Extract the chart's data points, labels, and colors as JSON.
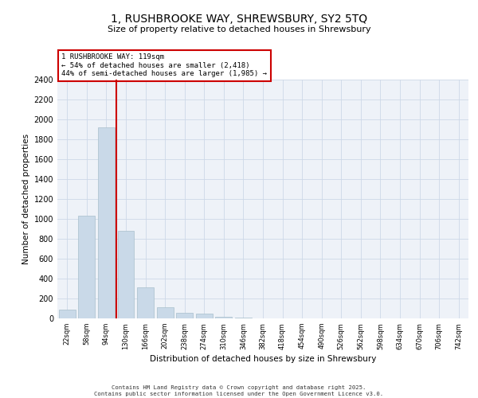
{
  "title_line1": "1, RUSHBROOKE WAY, SHREWSBURY, SY2 5TQ",
  "title_line2": "Size of property relative to detached houses in Shrewsbury",
  "xlabel": "Distribution of detached houses by size in Shrewsbury",
  "ylabel": "Number of detached properties",
  "categories": [
    "22sqm",
    "58sqm",
    "94sqm",
    "130sqm",
    "166sqm",
    "202sqm",
    "238sqm",
    "274sqm",
    "310sqm",
    "346sqm",
    "382sqm",
    "418sqm",
    "454sqm",
    "490sqm",
    "526sqm",
    "562sqm",
    "598sqm",
    "634sqm",
    "670sqm",
    "706sqm",
    "742sqm"
  ],
  "values": [
    85,
    1030,
    1920,
    880,
    315,
    115,
    55,
    45,
    20,
    10,
    0,
    0,
    0,
    0,
    0,
    0,
    0,
    0,
    0,
    0,
    0
  ],
  "bar_color": "#c9d9e8",
  "bar_edge_color": "#a8bfcc",
  "red_line_x": 2.5,
  "annotation_text": "1 RUSHBROOKE WAY: 119sqm\n← 54% of detached houses are smaller (2,418)\n44% of semi-detached houses are larger (1,985) →",
  "annotation_box_color": "#ffffff",
  "annotation_box_edge": "#cc0000",
  "red_line_color": "#cc0000",
  "ylim": [
    0,
    2400
  ],
  "yticks": [
    0,
    200,
    400,
    600,
    800,
    1000,
    1200,
    1400,
    1600,
    1800,
    2000,
    2200,
    2400
  ],
  "grid_color": "#cdd8e8",
  "background_color": "#eef2f8",
  "footer_line1": "Contains HM Land Registry data © Crown copyright and database right 2025.",
  "footer_line2": "Contains public sector information licensed under the Open Government Licence v3.0."
}
